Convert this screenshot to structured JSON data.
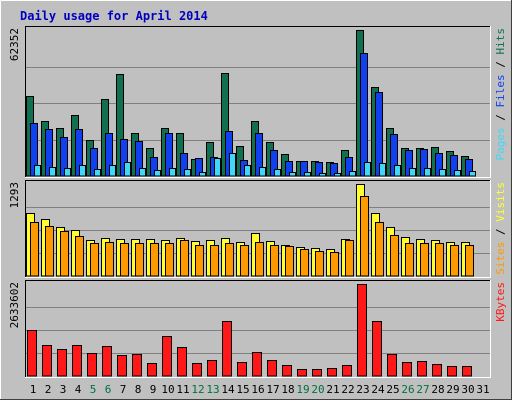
{
  "colors": {
    "background": "#c0c0c0",
    "title": "#0000c0",
    "hits": "#107050",
    "files": "#1040f0",
    "pages": "#40d8f8",
    "visits": "#ffff30",
    "sites": "#ff9900",
    "kbytes": "#ff1818",
    "weekend": "#007040"
  },
  "chart_data": {
    "type": "bar",
    "title": "Daily usage for April 2014",
    "x": [
      1,
      2,
      3,
      4,
      5,
      6,
      7,
      8,
      9,
      10,
      11,
      12,
      13,
      14,
      15,
      16,
      17,
      18,
      19,
      20,
      21,
      22,
      23,
      24,
      25,
      26,
      27,
      28,
      29,
      30,
      31
    ],
    "weekend_days": [
      5,
      6,
      12,
      13,
      19,
      20,
      26,
      27
    ],
    "panels": [
      {
        "name": "pages-files-hits",
        "ymax_label": "62352",
        "ymax": 62352,
        "legend": [
          {
            "text": "Pages",
            "color_key": "pages"
          },
          {
            "text": " / ",
            "color_key": "sep"
          },
          {
            "text": "Files",
            "color_key": "files"
          },
          {
            "text": " / ",
            "color_key": "sep"
          },
          {
            "text": "Hits",
            "color_key": "hits"
          }
        ],
        "series": [
          {
            "name": "Hits",
            "color_key": "hits",
            "values": [
              34300,
              23700,
              20300,
              26000,
              15200,
              32800,
              43700,
              18300,
              11900,
              20700,
              18300,
              7200,
              14400,
              44000,
              12600,
              23300,
              14500,
              9200,
              6500,
              6300,
              6100,
              10900,
              62352,
              37800,
              20300,
              11900,
              11900,
              12500,
              10600,
              8700,
              0
            ]
          },
          {
            "name": "Files",
            "color_key": "files",
            "values": [
              22600,
              20000,
              16500,
              20000,
              12000,
              18300,
              15900,
              14900,
              8300,
              18500,
              9800,
              7800,
              8300,
              19100,
              6800,
              18400,
              11000,
              6500,
              6500,
              5800,
              5600,
              8000,
              52400,
              35700,
              18100,
              11300,
              11700,
              9700,
              9000,
              7200,
              0
            ]
          },
          {
            "name": "Pages",
            "color_key": "pages",
            "values": [
              4800,
              3800,
              3300,
              4600,
              3200,
              4800,
              6100,
              3600,
              2700,
              3300,
              2800,
              1900,
              7800,
              9800,
              4700,
              3800,
              2800,
              1800,
              1900,
              1400,
              1300,
              2100,
              6100,
              5600,
              4700,
              3300,
              3500,
              3100,
              2500,
              2200,
              0
            ]
          }
        ]
      },
      {
        "name": "visits-sites",
        "ymax_label": "1293",
        "ymax": 1293,
        "legend": [
          {
            "text": "Sites",
            "color_key": "sites"
          },
          {
            "text": " / ",
            "color_key": "sep"
          },
          {
            "text": "Visits",
            "color_key": "visits"
          }
        ],
        "series": [
          {
            "name": "Visits",
            "color_key": "visits",
            "values": [
              883,
              800,
              685,
              648,
              505,
              540,
              525,
              520,
              520,
              505,
              530,
              495,
              510,
              532,
              475,
              605,
              485,
              440,
              412,
              388,
              382,
              518,
              1293,
              880,
              695,
              555,
              515,
              505,
              480,
              480,
              0
            ]
          },
          {
            "name": "Sites",
            "color_key": "sites",
            "values": [
              762,
              700,
              630,
              560,
              460,
              480,
              460,
              460,
              460,
              460,
              500,
              440,
              440,
              460,
              440,
              480,
              440,
              420,
              380,
              350,
              340,
              500,
              1122,
              755,
              580,
              460,
              460,
              460,
              440,
              440,
              0
            ]
          }
        ]
      },
      {
        "name": "kbytes",
        "ymax_label": "2633602",
        "ymax": 2633602,
        "legend": [
          {
            "text": "KBytes",
            "color_key": "kbytes"
          }
        ],
        "series": [
          {
            "name": "KBytes",
            "color_key": "kbytes",
            "values": [
              1325000,
              890000,
              780000,
              895000,
              650000,
              870000,
              595000,
              640000,
              380000,
              1140000,
              825000,
              380000,
              470000,
              1575000,
              390000,
              685000,
              470000,
              310000,
              190000,
              200000,
              220000,
              320000,
              2633602,
              1580000,
              620000,
              410000,
              420000,
              330000,
              300000,
              290000,
              0
            ]
          }
        ]
      }
    ]
  }
}
